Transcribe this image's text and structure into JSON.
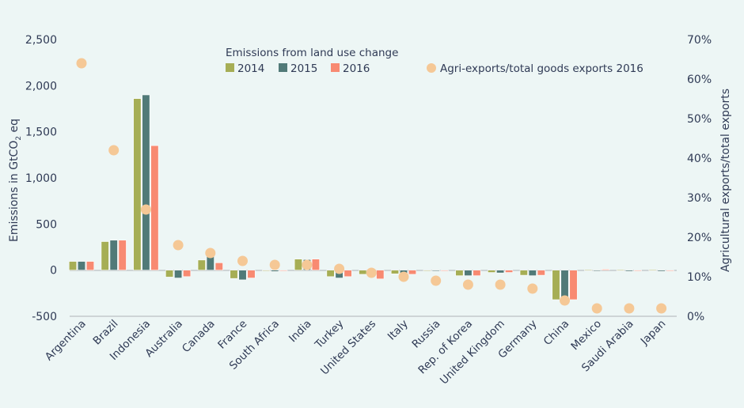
{
  "chart_data": {
    "type": "bar",
    "title": "",
    "legend_title": "Emissions from land use change",
    "legend_position": "top-center",
    "ylabel": "Emissions in GtCO2 eq",
    "ylabel_parts": {
      "main": "Emissions in GtCO",
      "sub": "2",
      "tail": " eq"
    },
    "y2label": "Agricultural exports/total exports",
    "ylim": [
      -500,
      2500
    ],
    "yticks": [
      -500,
      0,
      500,
      1000,
      1500,
      2000,
      2500
    ],
    "ytick_labels": [
      "-500",
      "0",
      "500",
      "1,000",
      "1,500",
      "2,000",
      "2,500"
    ],
    "y2lim": [
      0,
      70
    ],
    "y2ticks": [
      0,
      10,
      20,
      30,
      40,
      50,
      60,
      70
    ],
    "y2tick_labels": [
      "0%",
      "10%",
      "20%",
      "30%",
      "40%",
      "50%",
      "60%",
      "70%"
    ],
    "grid": false,
    "categories": [
      "Argentina",
      "Brazil",
      "Indonesia",
      "Australia",
      "Canada",
      "France",
      "South Africa",
      "India",
      "Turkey",
      "United States",
      "Italy",
      "Russia",
      "Rep. of Korea",
      "United Kingdom",
      "Germany",
      "China",
      "Mexico",
      "Saudi Arabia",
      "Japan"
    ],
    "series": [
      {
        "name": "2014",
        "type": "bar",
        "color": "#a6ae55",
        "values": [
          95,
          310,
          1860,
          -75,
          110,
          -90,
          -5,
          120,
          -70,
          -45,
          -40,
          -5,
          -60,
          -25,
          -55,
          -320,
          3,
          3,
          3
        ]
      },
      {
        "name": "2015",
        "type": "bar",
        "color": "#517a78",
        "values": [
          95,
          325,
          1900,
          -85,
          155,
          -105,
          -15,
          115,
          -85,
          -30,
          -35,
          -10,
          -60,
          -30,
          -60,
          -310,
          -10,
          -12,
          -12
        ]
      },
      {
        "name": "2016",
        "type": "bar",
        "color": "#f88a72",
        "values": [
          95,
          325,
          1350,
          -70,
          80,
          -85,
          -5,
          120,
          -70,
          -95,
          -45,
          -5,
          -60,
          -25,
          -55,
          -320,
          10,
          -3,
          -3
        ]
      },
      {
        "name": "Agri-exports/total goods exports 2016",
        "type": "scatter",
        "axis": "right",
        "color": "#f5c896",
        "unit": "%",
        "values": [
          64,
          42,
          27,
          18,
          16,
          14,
          13,
          13,
          12,
          11,
          10,
          9,
          8,
          8,
          7,
          4,
          2,
          2,
          2
        ]
      }
    ]
  }
}
